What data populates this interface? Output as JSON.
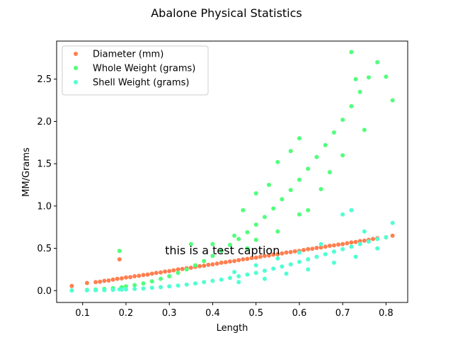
{
  "chart_data": {
    "type": "scatter",
    "title": "Abalone Physical Statistics",
    "xlabel": "Length",
    "ylabel": "MM/Grams",
    "xlim": [
      0.04,
      0.85
    ],
    "ylim": [
      -0.14,
      2.95
    ],
    "xticks": [
      0.1,
      0.2,
      0.3,
      0.4,
      0.5,
      0.6,
      0.7,
      0.8
    ],
    "yticks": [
      0.0,
      0.5,
      1.0,
      1.5,
      2.0,
      2.5
    ],
    "xtick_labels": [
      "0.1",
      "0.2",
      "0.3",
      "0.4",
      "0.5",
      "0.6",
      "0.7",
      "0.8"
    ],
    "ytick_labels": [
      "0.0",
      "0.5",
      "1.0",
      "1.5",
      "2.0",
      "2.5"
    ],
    "grid": false,
    "legend_position": "top-left",
    "annotation": {
      "text": "this is a test caption",
      "x": 0.29,
      "y": 0.43
    },
    "series": [
      {
        "name": "Diameter (mm)",
        "color": "#ff7f50",
        "points": [
          [
            0.075,
            0.055
          ],
          [
            0.11,
            0.09
          ],
          [
            0.13,
            0.1
          ],
          [
            0.14,
            0.105
          ],
          [
            0.15,
            0.115
          ],
          [
            0.16,
            0.12
          ],
          [
            0.17,
            0.13
          ],
          [
            0.18,
            0.14
          ],
          [
            0.185,
            0.37
          ],
          [
            0.19,
            0.145
          ],
          [
            0.2,
            0.155
          ],
          [
            0.21,
            0.16
          ],
          [
            0.22,
            0.17
          ],
          [
            0.23,
            0.175
          ],
          [
            0.24,
            0.185
          ],
          [
            0.25,
            0.19
          ],
          [
            0.26,
            0.2
          ],
          [
            0.27,
            0.21
          ],
          [
            0.28,
            0.215
          ],
          [
            0.29,
            0.225
          ],
          [
            0.3,
            0.23
          ],
          [
            0.31,
            0.24
          ],
          [
            0.32,
            0.25
          ],
          [
            0.33,
            0.255
          ],
          [
            0.34,
            0.265
          ],
          [
            0.35,
            0.27
          ],
          [
            0.36,
            0.28
          ],
          [
            0.37,
            0.29
          ],
          [
            0.38,
            0.295
          ],
          [
            0.39,
            0.305
          ],
          [
            0.4,
            0.31
          ],
          [
            0.41,
            0.32
          ],
          [
            0.42,
            0.33
          ],
          [
            0.43,
            0.335
          ],
          [
            0.44,
            0.345
          ],
          [
            0.45,
            0.35
          ],
          [
            0.46,
            0.36
          ],
          [
            0.47,
            0.37
          ],
          [
            0.48,
            0.375
          ],
          [
            0.49,
            0.385
          ],
          [
            0.5,
            0.39
          ],
          [
            0.51,
            0.4
          ],
          [
            0.52,
            0.41
          ],
          [
            0.53,
            0.415
          ],
          [
            0.54,
            0.425
          ],
          [
            0.55,
            0.43
          ],
          [
            0.56,
            0.44
          ],
          [
            0.57,
            0.45
          ],
          [
            0.58,
            0.455
          ],
          [
            0.59,
            0.465
          ],
          [
            0.6,
            0.47
          ],
          [
            0.61,
            0.48
          ],
          [
            0.62,
            0.49
          ],
          [
            0.63,
            0.495
          ],
          [
            0.64,
            0.505
          ],
          [
            0.65,
            0.51
          ],
          [
            0.66,
            0.52
          ],
          [
            0.67,
            0.53
          ],
          [
            0.68,
            0.535
          ],
          [
            0.69,
            0.545
          ],
          [
            0.7,
            0.55
          ],
          [
            0.71,
            0.56
          ],
          [
            0.72,
            0.57
          ],
          [
            0.73,
            0.575
          ],
          [
            0.74,
            0.585
          ],
          [
            0.75,
            0.59
          ],
          [
            0.76,
            0.6
          ],
          [
            0.77,
            0.61
          ],
          [
            0.78,
            0.62
          ],
          [
            0.8,
            0.63
          ],
          [
            0.815,
            0.65
          ]
        ]
      },
      {
        "name": "Whole Weight (grams)",
        "color": "#50ff7b",
        "points": [
          [
            0.075,
            0.002
          ],
          [
            0.11,
            0.008
          ],
          [
            0.13,
            0.013
          ],
          [
            0.15,
            0.02
          ],
          [
            0.17,
            0.03
          ],
          [
            0.185,
            0.47
          ],
          [
            0.19,
            0.04
          ],
          [
            0.2,
            0.05
          ],
          [
            0.22,
            0.065
          ],
          [
            0.24,
            0.085
          ],
          [
            0.26,
            0.11
          ],
          [
            0.28,
            0.14
          ],
          [
            0.3,
            0.17
          ],
          [
            0.32,
            0.21
          ],
          [
            0.34,
            0.25
          ],
          [
            0.36,
            0.3
          ],
          [
            0.38,
            0.35
          ],
          [
            0.4,
            0.41
          ],
          [
            0.42,
            0.47
          ],
          [
            0.44,
            0.54
          ],
          [
            0.46,
            0.61
          ],
          [
            0.48,
            0.69
          ],
          [
            0.5,
            0.78
          ],
          [
            0.52,
            0.87
          ],
          [
            0.54,
            0.97
          ],
          [
            0.56,
            1.08
          ],
          [
            0.58,
            1.19
          ],
          [
            0.6,
            1.31
          ],
          [
            0.62,
            1.44
          ],
          [
            0.64,
            1.58
          ],
          [
            0.66,
            1.72
          ],
          [
            0.68,
            1.87
          ],
          [
            0.7,
            2.02
          ],
          [
            0.72,
            2.18
          ],
          [
            0.73,
            2.5
          ],
          [
            0.74,
            2.35
          ],
          [
            0.76,
            2.52
          ],
          [
            0.78,
            2.7
          ],
          [
            0.8,
            2.53
          ],
          [
            0.815,
            2.25
          ],
          [
            0.72,
            2.82
          ],
          [
            0.6,
            1.8
          ],
          [
            0.58,
            1.65
          ],
          [
            0.55,
            1.52
          ],
          [
            0.5,
            1.15
          ],
          [
            0.45,
            0.65
          ],
          [
            0.4,
            0.55
          ],
          [
            0.5,
            0.6
          ],
          [
            0.55,
            0.7
          ],
          [
            0.6,
            0.9
          ],
          [
            0.65,
            1.2
          ],
          [
            0.7,
            1.6
          ],
          [
            0.75,
            1.9
          ],
          [
            0.62,
            0.95
          ],
          [
            0.67,
            1.4
          ],
          [
            0.47,
            0.95
          ],
          [
            0.53,
            1.25
          ],
          [
            0.35,
            0.55
          ],
          [
            0.48,
            0.5
          ]
        ]
      },
      {
        "name": "Shell Weight (grams)",
        "color": "#50ffd2",
        "points": [
          [
            0.075,
            0.0015
          ],
          [
            0.11,
            0.003
          ],
          [
            0.13,
            0.004
          ],
          [
            0.15,
            0.006
          ],
          [
            0.17,
            0.009
          ],
          [
            0.185,
            0.015
          ],
          [
            0.19,
            0.012
          ],
          [
            0.2,
            0.015
          ],
          [
            0.22,
            0.02
          ],
          [
            0.24,
            0.026
          ],
          [
            0.26,
            0.033
          ],
          [
            0.28,
            0.041
          ],
          [
            0.3,
            0.05
          ],
          [
            0.32,
            0.06
          ],
          [
            0.34,
            0.072
          ],
          [
            0.36,
            0.085
          ],
          [
            0.38,
            0.1
          ],
          [
            0.4,
            0.115
          ],
          [
            0.42,
            0.13
          ],
          [
            0.44,
            0.15
          ],
          [
            0.46,
            0.17
          ],
          [
            0.48,
            0.19
          ],
          [
            0.5,
            0.21
          ],
          [
            0.52,
            0.235
          ],
          [
            0.54,
            0.26
          ],
          [
            0.56,
            0.285
          ],
          [
            0.58,
            0.31
          ],
          [
            0.6,
            0.34
          ],
          [
            0.62,
            0.37
          ],
          [
            0.64,
            0.4
          ],
          [
            0.66,
            0.43
          ],
          [
            0.68,
            0.46
          ],
          [
            0.7,
            0.49
          ],
          [
            0.72,
            0.52
          ],
          [
            0.74,
            0.55
          ],
          [
            0.76,
            0.58
          ],
          [
            0.78,
            0.61
          ],
          [
            0.8,
            0.63
          ],
          [
            0.815,
            0.8
          ],
          [
            0.7,
            0.9
          ],
          [
            0.72,
            0.95
          ],
          [
            0.75,
            0.7
          ],
          [
            0.65,
            0.55
          ],
          [
            0.6,
            0.45
          ],
          [
            0.55,
            0.38
          ],
          [
            0.5,
            0.3
          ],
          [
            0.45,
            0.22
          ],
          [
            0.62,
            0.25
          ],
          [
            0.68,
            0.33
          ],
          [
            0.57,
            0.2
          ],
          [
            0.73,
            0.4
          ],
          [
            0.52,
            0.14
          ],
          [
            0.46,
            0.1
          ],
          [
            0.78,
            0.5
          ]
        ]
      }
    ]
  }
}
